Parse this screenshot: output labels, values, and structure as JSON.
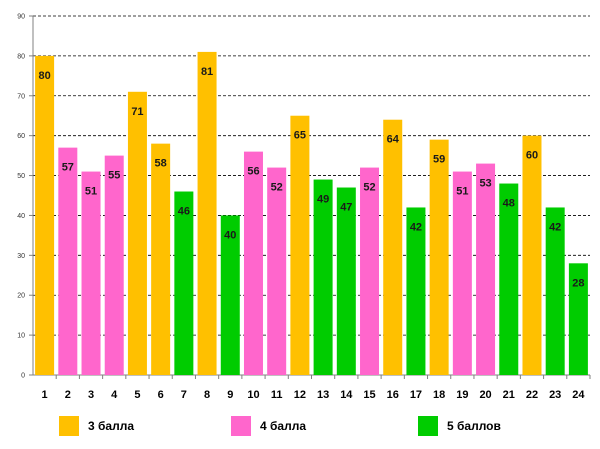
{
  "chart_data": {
    "type": "bar",
    "title": "",
    "xlabel": "",
    "ylabel": "",
    "ylim": [
      0,
      90
    ],
    "yticks": [
      0,
      10,
      20,
      30,
      40,
      50,
      60,
      70,
      80,
      90
    ],
    "grid": true,
    "categories": [
      "1",
      "2",
      "3",
      "4",
      "5",
      "6",
      "7",
      "8",
      "9",
      "10",
      "11",
      "12",
      "13",
      "14",
      "15",
      "16",
      "17",
      "18",
      "19",
      "20",
      "21",
      "22",
      "23",
      "24"
    ],
    "values": [
      80,
      57,
      51,
      55,
      71,
      58,
      46,
      81,
      40,
      56,
      52,
      65,
      49,
      47,
      52,
      64,
      42,
      59,
      51,
      53,
      48,
      60,
      42,
      28
    ],
    "groups": [
      "3 балла",
      "4 балла",
      "4 балла",
      "4 балла",
      "3 балла",
      "3 балла",
      "5 баллов",
      "3 балла",
      "5 баллов",
      "4 балла",
      "4 балла",
      "3 балла",
      "5 баллов",
      "5 баллов",
      "4 балла",
      "3 балла",
      "5 баллов",
      "3 балла",
      "4 балла",
      "4 балла",
      "5 баллов",
      "3 балла",
      "5 баллов",
      "5 баллов"
    ],
    "legend": [
      {
        "label": "3 балла",
        "color": "#FFC000"
      },
      {
        "label": "4 балла",
        "color": "#FF66CC"
      },
      {
        "label": "5 баллов",
        "color": "#00CC00"
      }
    ],
    "legend_position": "bottom"
  }
}
